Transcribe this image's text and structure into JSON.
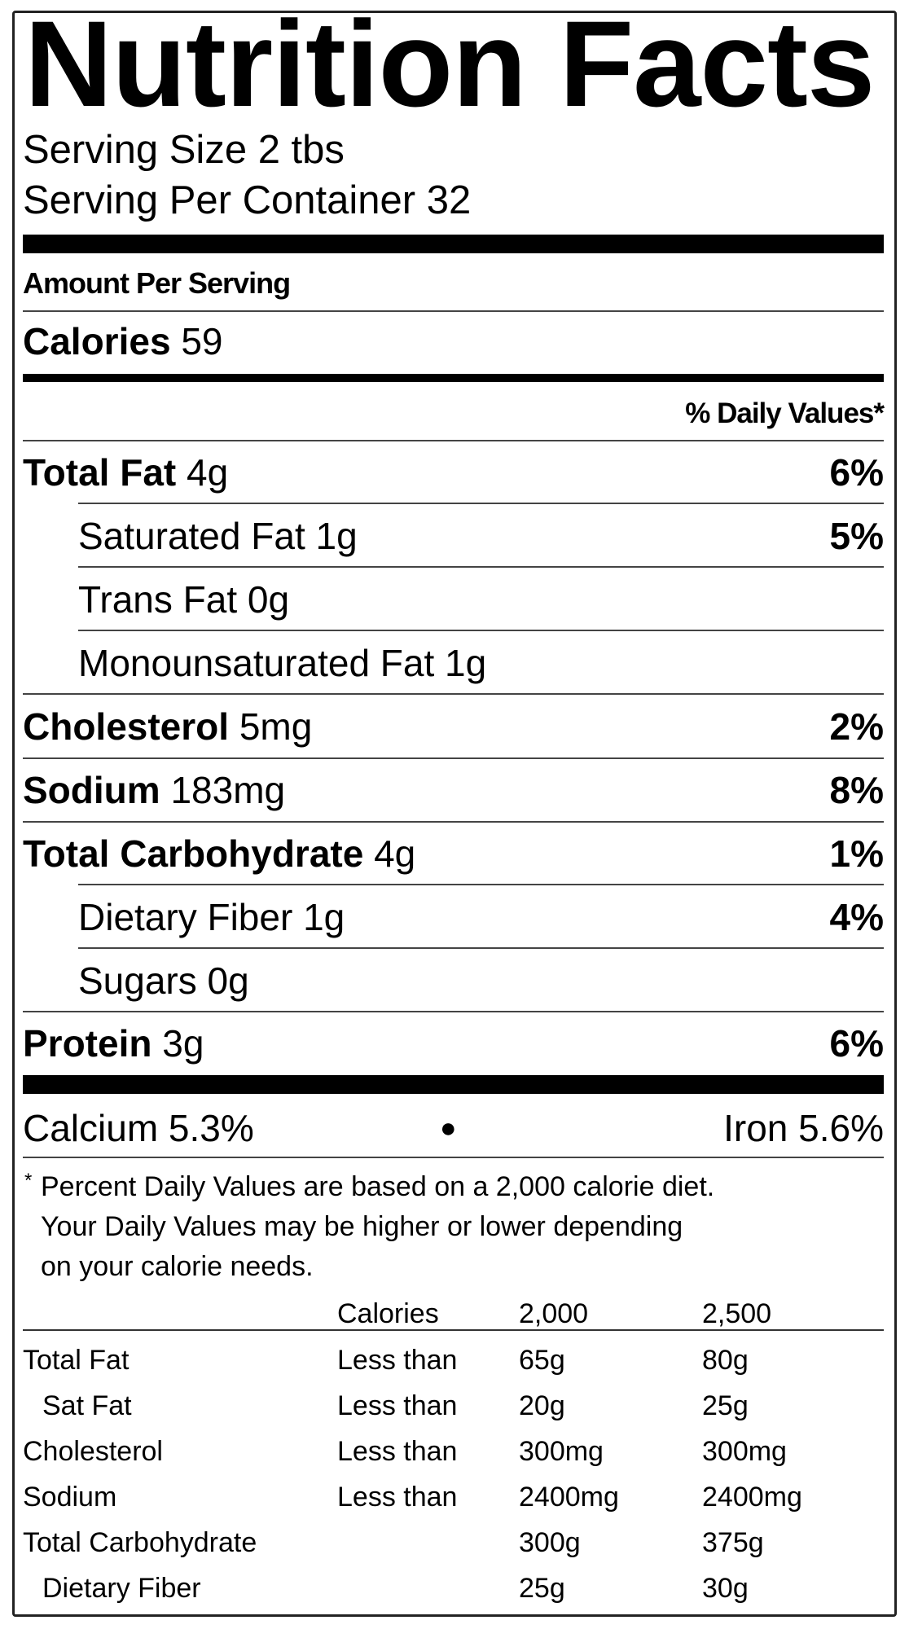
{
  "title": "Nutrition Facts",
  "serving_size": "Serving Size 2 tbs",
  "servings_per_container": "Serving Per Container 32",
  "amount_per_serving": "Amount Per Serving",
  "calories": {
    "label": "Calories",
    "value": "59"
  },
  "daily_values_header": "% Daily Values*",
  "nutrients": [
    {
      "label": "Total Fat",
      "amount": "4g",
      "dv": "6%"
    },
    {
      "label": "Saturated Fat 1g",
      "amount": "",
      "dv": "5%"
    },
    {
      "label": "Trans Fat 0g",
      "amount": "",
      "dv": ""
    },
    {
      "label": "Monounsaturated Fat 1g",
      "amount": "",
      "dv": ""
    },
    {
      "label": "Cholesterol",
      "amount": "5mg",
      "dv": "2%"
    },
    {
      "label": "Sodium",
      "amount": "183mg",
      "dv": "8%"
    },
    {
      "label": "Total Carbohydrate",
      "amount": "4g",
      "dv": "1%"
    },
    {
      "label": "Dietary Fiber 1g",
      "amount": "",
      "dv": "4%"
    },
    {
      "label": "Sugars 0g",
      "amount": "",
      "dv": ""
    },
    {
      "label": "Protein",
      "amount": "3g",
      "dv": "6%"
    }
  ],
  "vitamins": {
    "calcium": "Calcium 5.3%",
    "separator": "●",
    "iron": "Iron 5.6%"
  },
  "footnote": {
    "mark": "*",
    "lines": [
      "Percent Daily Values are based on a 2,000 calorie diet.",
      "Your Daily Values may be higher or lower depending",
      "on your calorie needs."
    ]
  },
  "reference_table": {
    "header": [
      "",
      "Calories",
      "2,000",
      "2,500"
    ],
    "rows": [
      [
        "Total Fat",
        "Less than",
        "65g",
        "80g"
      ],
      [
        "Sat Fat",
        "Less than",
        "20g",
        "25g"
      ],
      [
        "Cholesterol",
        "Less than",
        "300mg",
        "300mg"
      ],
      [
        "Sodium",
        "Less than",
        "2400mg",
        "2400mg"
      ],
      [
        "Total Carbohydrate",
        "",
        "300g",
        "375g"
      ],
      [
        "Dietary Fiber",
        "",
        "25g",
        "30g"
      ]
    ]
  }
}
